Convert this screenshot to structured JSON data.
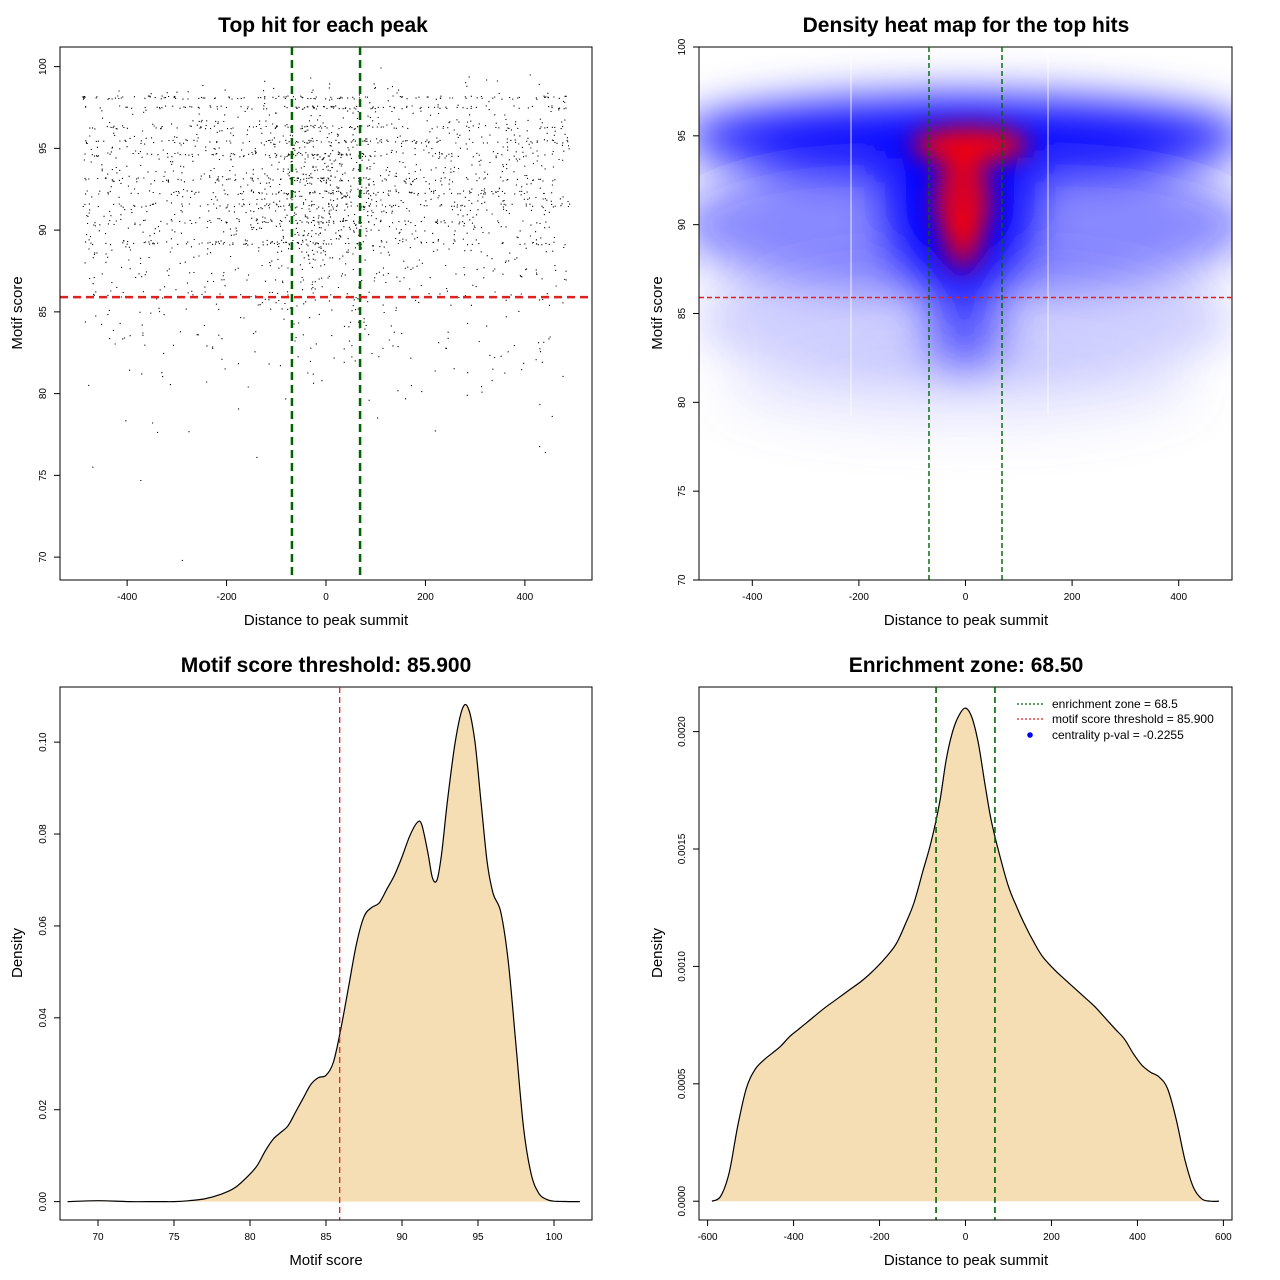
{
  "colors": {
    "green": "#006400",
    "red": "#dd2222",
    "fill": "#f5deb3",
    "heat_low": "#0000ff",
    "heat_high": "#ff0000"
  },
  "chart_data": [
    {
      "type": "scatter",
      "title": "Top hit for each peak",
      "xlabel": "Distance to peak summit",
      "ylabel": "Motif score",
      "xlim": [
        -535,
        535
      ],
      "ylim": [
        68.6,
        101.2
      ],
      "xticks": [
        -400,
        -200,
        0,
        200,
        400
      ],
      "yticks": [
        70,
        75,
        80,
        85,
        90,
        95,
        100
      ],
      "vlines": [
        -68.5,
        68.5
      ],
      "hline": 85.9,
      "point_count": 9000,
      "x_range": [
        -490,
        490
      ],
      "score_range": [
        69.8,
        100
      ]
    },
    {
      "type": "heatmap",
      "title": "Density heat map for the top hits",
      "xlabel": "Distance to peak summit",
      "ylabel": "Motif score",
      "xlim": [
        -500,
        500
      ],
      "ylim": [
        70,
        100
      ],
      "xticks": [
        -400,
        -200,
        0,
        200,
        400
      ],
      "yticks": [
        70,
        75,
        80,
        85,
        90,
        95,
        100
      ],
      "vlines": [
        -68.5,
        68.5
      ],
      "hline": 85.9,
      "color_scale": [
        "white",
        "blue",
        "red"
      ]
    },
    {
      "type": "area",
      "title": "Motif score threshold: 85.900",
      "xlabel": "Motif score",
      "ylabel": "Density",
      "xlim": [
        67.5,
        102.5
      ],
      "ylim": [
        -0.004,
        0.112
      ],
      "xticks": [
        70,
        75,
        80,
        85,
        90,
        95,
        100
      ],
      "yticks": [
        0.0,
        0.02,
        0.04,
        0.06,
        0.08,
        0.1
      ],
      "ytick_labels": [
        "0.00",
        "0.02",
        "0.04",
        "0.06",
        "0.08",
        "0.10"
      ],
      "vlines": [
        85.9
      ],
      "x": [
        68,
        70,
        72,
        74,
        75,
        76,
        77,
        78,
        79,
        80,
        80.5,
        81,
        81.5,
        82,
        82.5,
        83,
        83.5,
        84,
        84.5,
        85,
        85.5,
        86,
        86.5,
        87,
        87.5,
        88,
        88.5,
        89,
        89.5,
        90,
        90.5,
        91,
        91.3,
        91.7,
        92,
        92.3,
        92.6,
        93,
        93.5,
        94,
        94.4,
        94.8,
        95.2,
        95.6,
        96,
        96.5,
        97,
        97.5,
        98,
        98.5,
        99,
        99.5,
        100,
        101,
        101.7
      ],
      "values": [
        0,
        0.0002,
        0,
        0,
        0,
        0.0002,
        0.0006,
        0.0015,
        0.003,
        0.006,
        0.008,
        0.011,
        0.0135,
        0.015,
        0.0165,
        0.0195,
        0.0225,
        0.0255,
        0.027,
        0.0275,
        0.0305,
        0.038,
        0.047,
        0.056,
        0.062,
        0.064,
        0.065,
        0.068,
        0.071,
        0.075,
        0.0795,
        0.0825,
        0.082,
        0.076,
        0.0705,
        0.07,
        0.0755,
        0.0875,
        0.1,
        0.1075,
        0.107,
        0.1,
        0.087,
        0.074,
        0.067,
        0.063,
        0.052,
        0.034,
        0.016,
        0.006,
        0.0018,
        0.0005,
        0.0001,
        0,
        0
      ]
    },
    {
      "type": "area",
      "title": "Enrichment zone: 68.50",
      "xlabel": "Distance to peak summit",
      "ylabel": "Density",
      "xlim": [
        -620,
        620
      ],
      "ylim": [
        -8e-05,
        0.00219
      ],
      "xticks": [
        -600,
        -400,
        -200,
        0,
        200,
        400,
        600
      ],
      "yticks": [
        0.0,
        0.0005,
        0.001,
        0.0015,
        0.002
      ],
      "ytick_labels": [
        "0.0000",
        "0.0005",
        "0.0010",
        "0.0015",
        "0.0020"
      ],
      "vlines": [
        -68.5,
        68.5
      ],
      "x": [
        -590,
        -570,
        -550,
        -530,
        -510,
        -490,
        -470,
        -450,
        -430,
        -410,
        -390,
        -370,
        -350,
        -330,
        -300,
        -270,
        -240,
        -210,
        -180,
        -160,
        -140,
        -120,
        -100,
        -80,
        -60,
        -45,
        -30,
        -15,
        0,
        15,
        30,
        45,
        60,
        80,
        100,
        120,
        140,
        160,
        180,
        210,
        240,
        270,
        300,
        330,
        350,
        370,
        390,
        410,
        430,
        450,
        470,
        490,
        510,
        530,
        550,
        570,
        590
      ],
      "values": [
        0,
        2e-05,
        0.00012,
        0.00032,
        0.00048,
        0.00056,
        0.0006,
        0.00063,
        0.00066,
        0.0007,
        0.00073,
        0.00076,
        0.00079,
        0.00082,
        0.00086,
        0.0009,
        0.00094,
        0.00099,
        0.00105,
        0.0011,
        0.00118,
        0.00127,
        0.0014,
        0.00153,
        0.0017,
        0.00188,
        0.002,
        0.00207,
        0.0021,
        0.00206,
        0.00195,
        0.00178,
        0.00162,
        0.00147,
        0.00134,
        0.00125,
        0.00117,
        0.0011,
        0.00104,
        0.00098,
        0.00093,
        0.00088,
        0.00083,
        0.00077,
        0.00073,
        0.00069,
        0.00063,
        0.00058,
        0.00055,
        0.00053,
        0.00048,
        0.00035,
        0.00018,
        6e-05,
        1e-05,
        0,
        0
      ],
      "legend": {
        "position": "top-right",
        "entries": [
          {
            "label": "enrichment zone = 68.5",
            "style": "dotted-line",
            "color": "#006400"
          },
          {
            "label": "motif score threshold = 85.900",
            "style": "dotted-line",
            "color": "#dd2222"
          },
          {
            "label": "centrality p-val = -0.2255",
            "style": "point",
            "color": "#0000ff"
          }
        ]
      }
    }
  ]
}
